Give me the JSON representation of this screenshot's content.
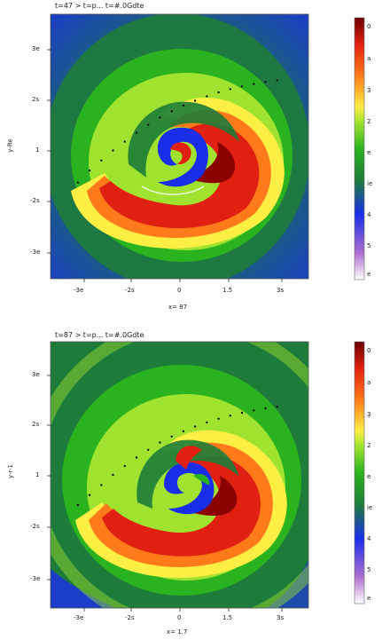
{
  "chart_data": [
    {
      "type": "heatmap",
      "title": "t=47 > t=p... t=#.0Gdte",
      "xlabel": "x= 87",
      "ylabel": "y-Re",
      "x_ticks": [
        "-3e",
        "-2s",
        "0",
        "1.5",
        "3s"
      ],
      "y_ticks": [
        "3e",
        "2s",
        "1",
        "-2s",
        "-3e"
      ],
      "colorbar_ticks": [
        "0",
        "a",
        "3",
        "2",
        "e",
        "ie",
        "4",
        "5",
        "e"
      ],
      "colormap": [
        "#ffffff",
        "#b070d0",
        "#1a2ee8",
        "#1e7c3a",
        "#2bb21f",
        "#9fe330",
        "#ffee44",
        "#ff7a1a",
        "#e02010",
        "#6b0000"
      ],
      "trail_points": [
        [
          -2.6,
          -0.9
        ],
        [
          -2.3,
          -0.6
        ],
        [
          -2.0,
          -0.35
        ],
        [
          -1.7,
          -0.1
        ],
        [
          -1.4,
          0.12
        ],
        [
          -1.1,
          0.34
        ],
        [
          -0.8,
          0.54
        ],
        [
          -0.5,
          0.72
        ],
        [
          -0.2,
          0.88
        ],
        [
          0.1,
          1.02
        ],
        [
          0.4,
          1.14
        ],
        [
          0.7,
          1.25
        ],
        [
          1.0,
          1.35
        ],
        [
          1.3,
          1.43
        ],
        [
          1.6,
          1.5
        ],
        [
          1.9,
          1.56
        ],
        [
          2.2,
          1.61
        ],
        [
          2.5,
          1.65
        ]
      ]
    },
    {
      "type": "heatmap",
      "title": "t=87 > t=p... t=#.0Gdte",
      "xlabel": "x= 1.7",
      "ylabel": "y-r-1",
      "x_ticks": [
        "-3e",
        "-2s",
        "0",
        "1.5",
        "3s"
      ],
      "y_ticks": [
        "3e",
        "2s",
        "1",
        "-2s",
        "-3e"
      ],
      "colorbar_ticks": [
        "0",
        "a",
        "3",
        "2",
        "e",
        "ie",
        "4",
        "5",
        "e"
      ],
      "colormap": [
        "#ffffff",
        "#b070d0",
        "#1a2ee8",
        "#1e7c3a",
        "#2bb21f",
        "#9fe330",
        "#ffee44",
        "#ff7a1a",
        "#e02010",
        "#6b0000"
      ],
      "trail_points": [
        [
          -2.6,
          -0.75
        ],
        [
          -2.3,
          -0.5
        ],
        [
          -2.0,
          -0.25
        ],
        [
          -1.7,
          0.0
        ],
        [
          -1.4,
          0.22
        ],
        [
          -1.1,
          0.43
        ],
        [
          -0.8,
          0.62
        ],
        [
          -0.5,
          0.8
        ],
        [
          -0.2,
          0.95
        ],
        [
          0.1,
          1.08
        ],
        [
          0.4,
          1.2
        ],
        [
          0.7,
          1.3
        ],
        [
          1.0,
          1.39
        ],
        [
          1.3,
          1.47
        ],
        [
          1.6,
          1.54
        ],
        [
          1.9,
          1.6
        ],
        [
          2.2,
          1.65
        ],
        [
          2.5,
          1.69
        ]
      ]
    }
  ]
}
